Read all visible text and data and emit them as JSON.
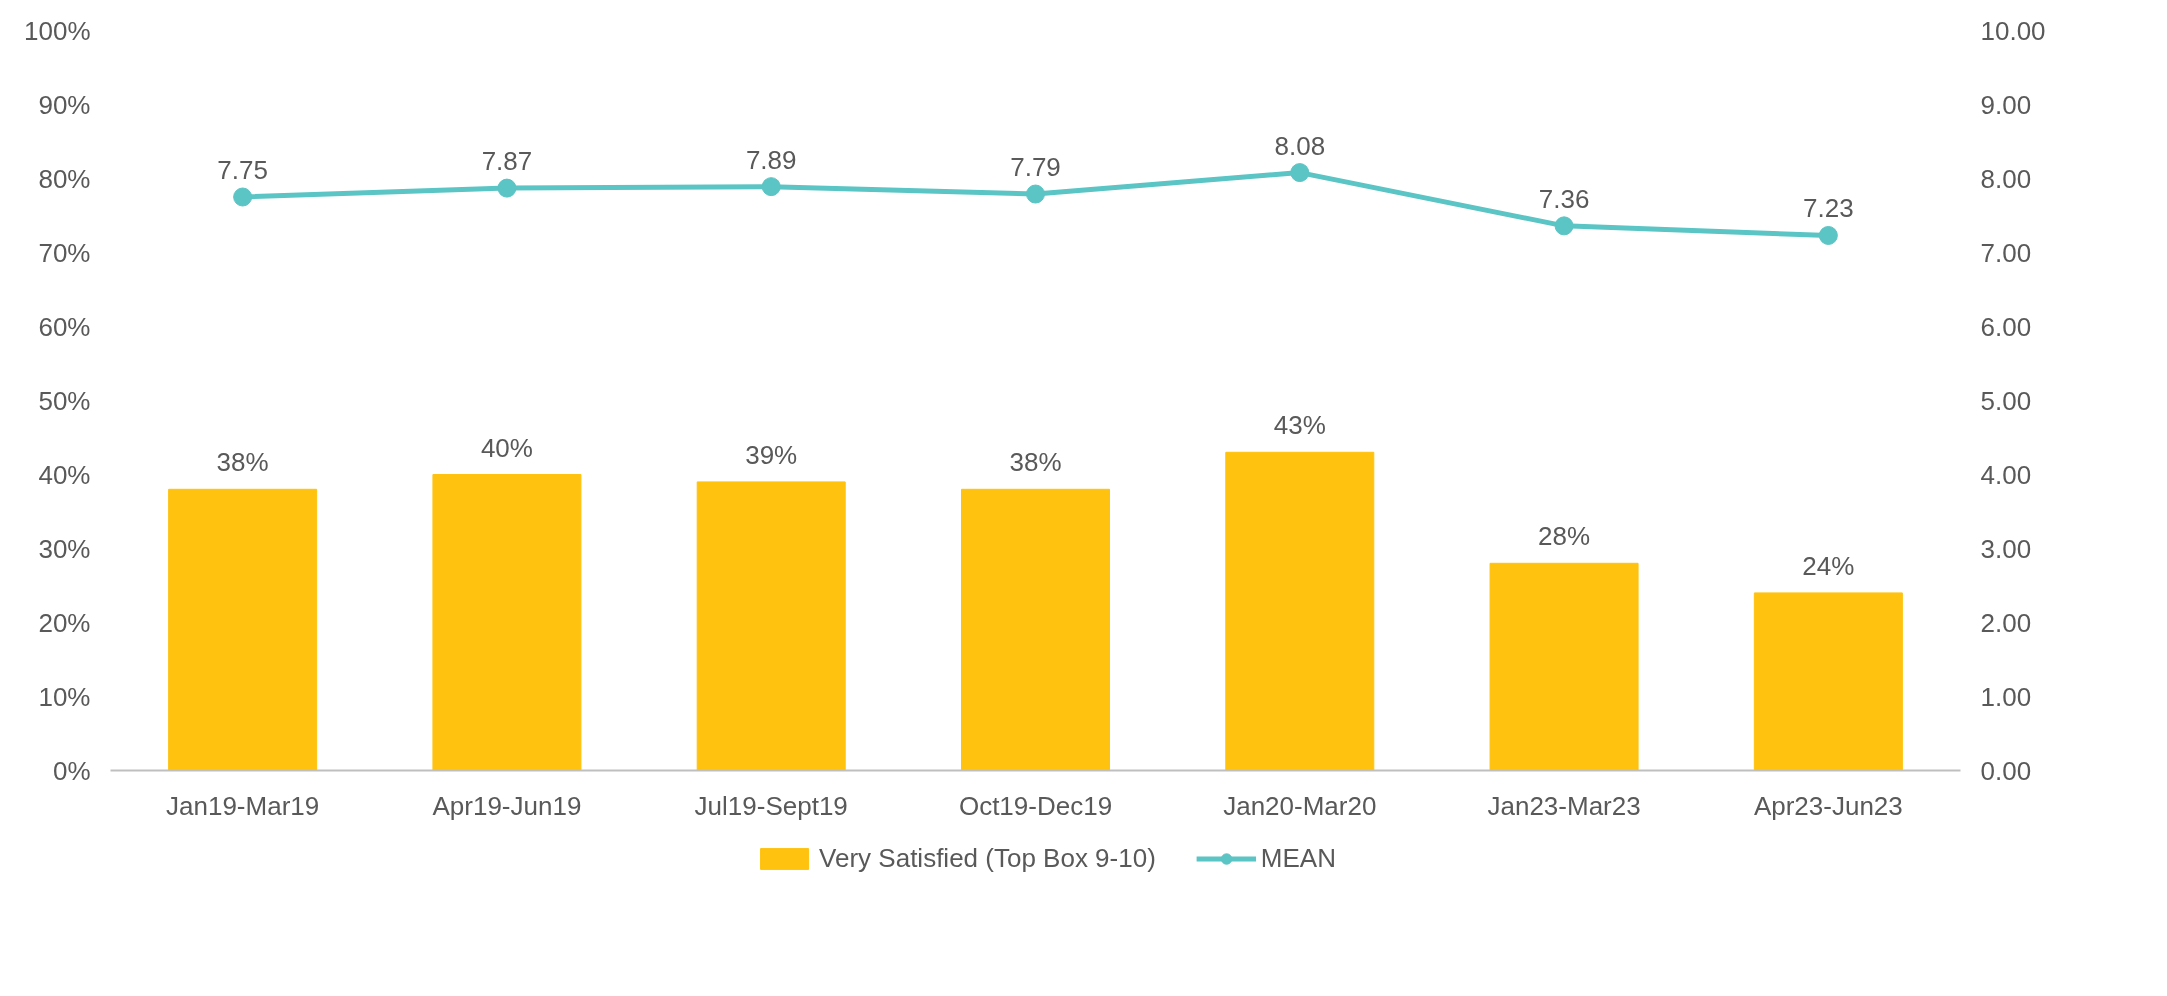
{
  "chart_data": {
    "type": "bar",
    "categories": [
      "Jan19-Mar19",
      "Apr19-Jun19",
      "Jul19-Sept19",
      "Oct19-Dec19",
      "Jan20-Mar20",
      "Jan23-Mar23",
      "Apr23-Jun23"
    ],
    "series": [
      {
        "name": "Very Satisfied (Top Box 9-10)",
        "color": "#ffc20e",
        "values": [
          38,
          40,
          39,
          38,
          43,
          28,
          24
        ],
        "value_labels": [
          "38%",
          "40%",
          "39%",
          "38%",
          "43%",
          "28%",
          "24%"
        ]
      },
      {
        "name": "MEAN",
        "type": "line",
        "axis": "y2",
        "color": "#5bc4c4",
        "marker": "circle",
        "values": [
          7.75,
          7.87,
          7.89,
          7.79,
          8.08,
          7.36,
          7.23
        ],
        "value_labels": [
          "7.75",
          "7.87",
          "7.89",
          "7.79",
          "8.08",
          "7.36",
          "7.23"
        ]
      }
    ],
    "ylim": [
      0,
      100
    ],
    "yticks": [
      {
        "value": 0,
        "label": "0%"
      },
      {
        "value": 10,
        "label": "10%"
      },
      {
        "value": 20,
        "label": "20%"
      },
      {
        "value": 30,
        "label": "30%"
      },
      {
        "value": 40,
        "label": "40%"
      },
      {
        "value": 50,
        "label": "50%"
      },
      {
        "value": 60,
        "label": "60%"
      },
      {
        "value": 70,
        "label": "70%"
      },
      {
        "value": 80,
        "label": "80%"
      },
      {
        "value": 90,
        "label": "90%"
      },
      {
        "value": 100,
        "label": "100%"
      }
    ],
    "y2lim": [
      0,
      10
    ],
    "y2ticks": [
      {
        "value": 0,
        "label": "0.00"
      },
      {
        "value": 1,
        "label": "1.00"
      },
      {
        "value": 2,
        "label": "2.00"
      },
      {
        "value": 3,
        "label": "3.00"
      },
      {
        "value": 4,
        "label": "4.00"
      },
      {
        "value": 5,
        "label": "5.00"
      },
      {
        "value": 6,
        "label": "6.00"
      },
      {
        "value": 7,
        "label": "7.00"
      },
      {
        "value": 8,
        "label": "8.00"
      },
      {
        "value": 9,
        "label": "9.00"
      },
      {
        "value": 10,
        "label": "10.00"
      }
    ],
    "grid": false,
    "legend": "bottom"
  }
}
